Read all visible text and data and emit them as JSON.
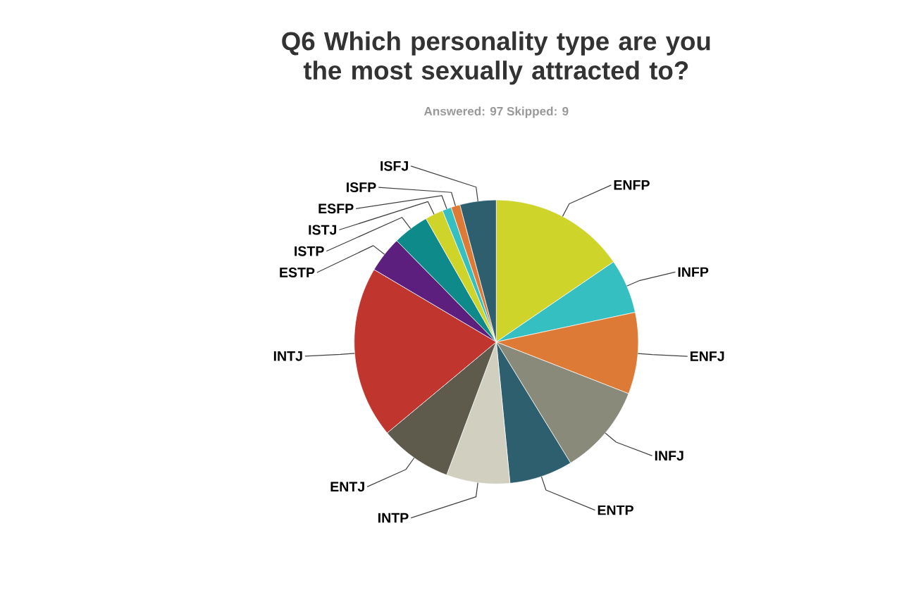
{
  "chart_data": {
    "type": "pie",
    "title": "Q6 Which personality type are you the most sexually attracted to?",
    "subtitle": "Answered: 97    Skipped: 9",
    "categories": [
      "ENFP",
      "INFP",
      "ENFJ",
      "INFJ",
      "ENTP",
      "INTP",
      "ENTJ",
      "INTJ",
      "ESTP",
      "ISTP",
      "ISTJ",
      "ESFP",
      "ISFP",
      "ISFJ"
    ],
    "values": [
      15.46,
      6.19,
      9.28,
      10.31,
      7.22,
      7.22,
      8.25,
      19.59,
      4.12,
      4.12,
      2.06,
      1.03,
      1.03,
      4.12
    ],
    "colors": [
      "#cfd42a",
      "#35bfc0",
      "#dd7a35",
      "#8a8a7a",
      "#2e5f6e",
      "#d0cfc0",
      "#5e5a4c",
      "#c0352e",
      "#5c1f7e",
      "#0f8a8a",
      "#cfd42a",
      "#35bfc0",
      "#dd7a35",
      "#2e5f6e"
    ]
  }
}
